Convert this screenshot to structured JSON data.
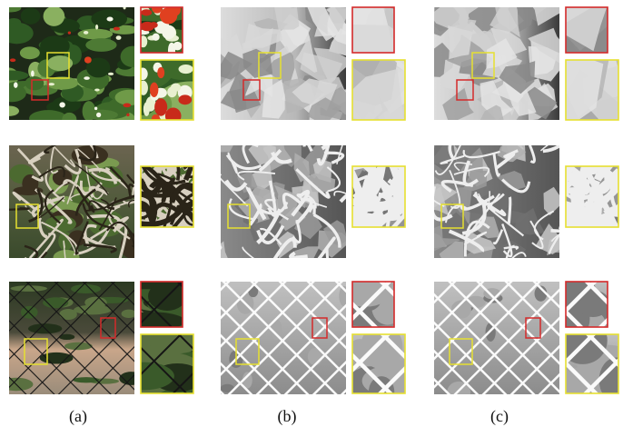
{
  "captions": [
    "(a)",
    "(b)",
    "(c)"
  ]
}
